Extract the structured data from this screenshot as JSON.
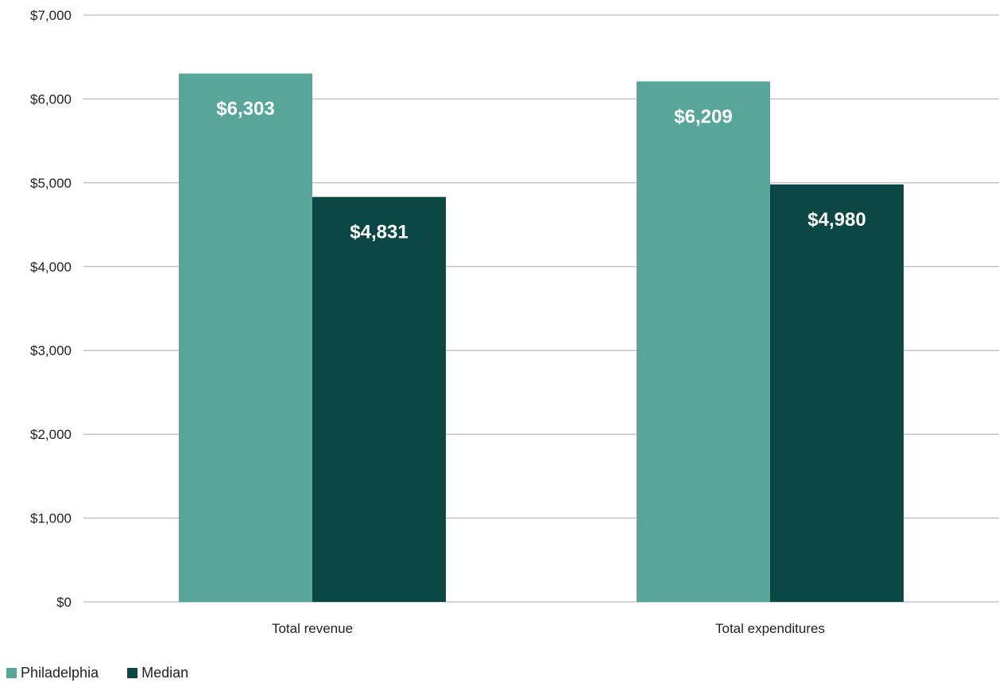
{
  "chart_data": {
    "type": "bar",
    "categories": [
      "Total revenue",
      "Total expenditures"
    ],
    "series": [
      {
        "name": "Philadelphia",
        "values": [
          6303,
          6209
        ],
        "labels": [
          "$6,303",
          "$6,209"
        ],
        "color": "#57a699"
      },
      {
        "name": "Median",
        "values": [
          4831,
          4980
        ],
        "labels": [
          "$4,831",
          "$4,980"
        ],
        "color": "#0b4845"
      }
    ],
    "ylim": [
      0,
      7000
    ],
    "yticks": [
      0,
      1000,
      2000,
      3000,
      4000,
      5000,
      6000,
      7000
    ],
    "ytick_labels": [
      "$0",
      "$1,000",
      "$2,000",
      "$3,000",
      "$4,000",
      "$5,000",
      "$6,000",
      "$7,000"
    ],
    "grid": true,
    "legend_position": "bottom-left",
    "gridline_color": "#a7a9ac"
  }
}
